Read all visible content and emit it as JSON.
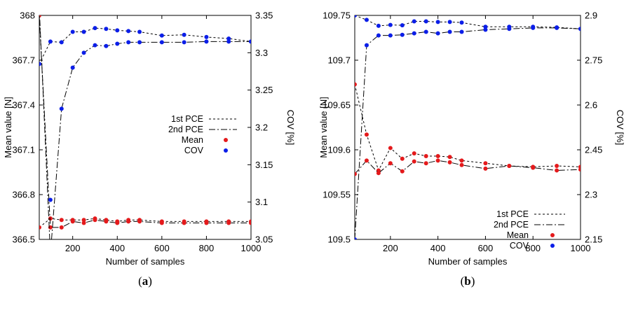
{
  "chart_data": [
    {
      "type": "line",
      "caption": "(a)",
      "caption_prefix": "(",
      "caption_letter": "a",
      "caption_suffix": ")",
      "xlabel": "Number of samples",
      "ylabel_left": "Mean value [N]",
      "ylabel_right": "COV [%]",
      "xlim": [
        50,
        1000
      ],
      "ylim_left": [
        366.5,
        368
      ],
      "ylim_right": [
        3.05,
        3.35
      ],
      "xticks": [
        200,
        400,
        600,
        800,
        1000
      ],
      "xtick_labels": [
        "200",
        "400",
        "600",
        "800",
        "1000"
      ],
      "yticks_left": [
        366.5,
        366.8,
        367.1,
        367.4,
        367.7,
        368
      ],
      "ytick_labels_left": [
        "366.5",
        "366.8",
        "367.1",
        "367.4",
        "367.7",
        "368"
      ],
      "yticks_right": [
        3.05,
        3.1,
        3.15,
        3.2,
        3.25,
        3.3,
        3.35
      ],
      "ytick_labels_right": [
        "3.05",
        "3.1",
        "3.15",
        "3.2",
        "3.25",
        "3.3",
        "3.35"
      ],
      "legend": [
        "1st PCE",
        "2nd PCE",
        "Mean",
        "COV"
      ],
      "legend_position": "center-right",
      "x": [
        50,
        100,
        150,
        200,
        250,
        300,
        350,
        400,
        450,
        500,
        600,
        700,
        800,
        900,
        1000
      ],
      "series": [
        {
          "name": "1st PCE",
          "axis": "left",
          "style": "dotted",
          "color": "#000000",
          "marker_color": "#e41a1c",
          "values": [
            366.58,
            366.64,
            366.63,
            366.63,
            366.63,
            366.64,
            366.63,
            366.62,
            366.63,
            366.63,
            366.62,
            366.62,
            366.62,
            366.62,
            366.62
          ]
        },
        {
          "name": "2nd PCE",
          "axis": "left",
          "style": "dashdot",
          "color": "#000000",
          "marker_color": "#e41a1c",
          "values": [
            368.0,
            366.58,
            366.58,
            366.62,
            366.61,
            366.63,
            366.62,
            366.61,
            366.62,
            366.62,
            366.61,
            366.61,
            366.61,
            366.61,
            366.61
          ]
        },
        {
          "name": "1st PCE",
          "axis": "right",
          "style": "dotted",
          "color": "#000000",
          "marker_color": "#0b1ee8",
          "values": [
            3.285,
            3.315,
            3.314,
            3.328,
            3.328,
            3.333,
            3.332,
            3.33,
            3.329,
            3.328,
            3.323,
            3.324,
            3.321,
            3.319,
            3.315
          ]
        },
        {
          "name": "2nd PCE",
          "axis": "right",
          "style": "dashdot",
          "color": "#000000",
          "marker_color": "#0b1ee8",
          "values": [
            3.36,
            3.03,
            3.225,
            3.28,
            3.3,
            3.31,
            3.309,
            3.312,
            3.314,
            3.314,
            3.314,
            3.314,
            3.315,
            3.315,
            3.315
          ]
        }
      ],
      "annotations": [
        {
          "axis": "right",
          "x": 100,
          "y": 3.103
        }
      ]
    },
    {
      "type": "line",
      "caption": "(b)",
      "caption_prefix": "(",
      "caption_letter": "b",
      "caption_suffix": ")",
      "xlabel": "Number of samples",
      "ylabel_left": "Mean value [N]",
      "ylabel_right": "COV [%]",
      "xlim": [
        50,
        1000
      ],
      "ylim_left": [
        109.5,
        109.75
      ],
      "ylim_right": [
        2.15,
        2.9
      ],
      "xticks": [
        200,
        400,
        600,
        800,
        1000
      ],
      "xtick_labels": [
        "200",
        "400",
        "600",
        "800",
        "1000"
      ],
      "yticks_left": [
        109.5,
        109.55,
        109.6,
        109.65,
        109.7,
        109.75
      ],
      "ytick_labels_left": [
        "109.5",
        "109.55",
        "109.6",
        "109.65",
        "109.7",
        "109.75"
      ],
      "yticks_right": [
        2.15,
        2.3,
        2.45,
        2.6,
        2.75,
        2.9
      ],
      "ytick_labels_right": [
        "2.15",
        "2.3",
        "2.45",
        "2.6",
        "2.75",
        "2.9"
      ],
      "legend": [
        "1st PCE",
        "2nd PCE",
        "Mean",
        "COV"
      ],
      "legend_position": "bottom-right",
      "x": [
        50,
        100,
        150,
        200,
        250,
        300,
        350,
        400,
        450,
        500,
        600,
        700,
        800,
        900,
        1000
      ],
      "series": [
        {
          "name": "1st PCE",
          "axis": "left",
          "style": "dotted",
          "color": "#000000",
          "marker_color": "#e41a1c",
          "values": [
            109.673,
            109.617,
            109.577,
            109.602,
            109.59,
            109.596,
            109.593,
            109.593,
            109.592,
            109.588,
            109.585,
            109.582,
            109.581,
            109.582,
            109.581
          ]
        },
        {
          "name": "2nd PCE",
          "axis": "left",
          "style": "dashdot",
          "color": "#000000",
          "marker_color": "#e41a1c",
          "values": [
            109.573,
            109.588,
            109.574,
            109.585,
            109.576,
            109.587,
            109.585,
            109.588,
            109.586,
            109.583,
            109.579,
            109.582,
            109.58,
            109.577,
            109.578
          ]
        },
        {
          "name": "1st PCE",
          "axis": "right",
          "style": "dotted",
          "color": "#000000",
          "marker_color": "#0b1ee8",
          "values": [
            2.9,
            2.885,
            2.865,
            2.868,
            2.867,
            2.88,
            2.88,
            2.878,
            2.878,
            2.876,
            2.862,
            2.862,
            2.862,
            2.86,
            2.855
          ]
        },
        {
          "name": "2nd PCE",
          "axis": "right",
          "style": "dashdot",
          "color": "#000000",
          "marker_color": "#0b1ee8",
          "values": [
            2.15,
            2.8,
            2.833,
            2.833,
            2.835,
            2.84,
            2.845,
            2.84,
            2.845,
            2.845,
            2.852,
            2.855,
            2.858,
            2.858,
            2.855
          ]
        }
      ]
    }
  ]
}
